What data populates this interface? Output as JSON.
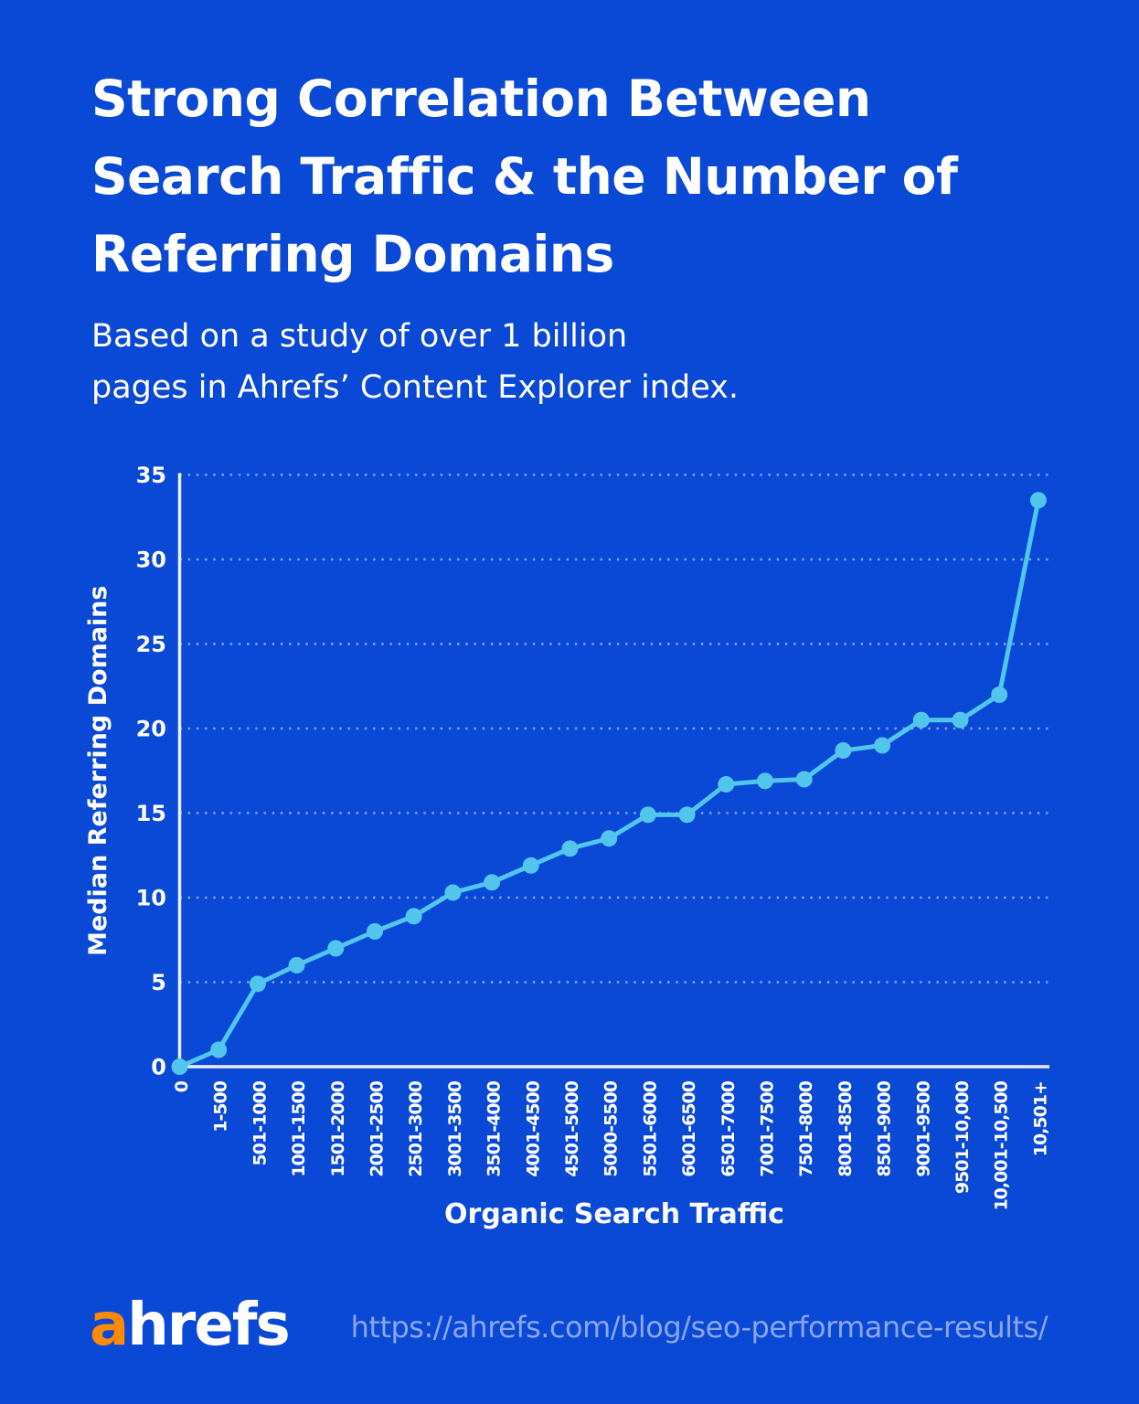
{
  "header": {
    "title_lines": [
      "Strong Correlation Between",
      "Search Traffic & the Number of",
      "Referring Domains"
    ],
    "subtitle_lines": [
      "Based on a study of over 1 billion",
      "pages in Ahrefs’ Content Explorer index."
    ]
  },
  "chart_data": {
    "type": "line",
    "title": "",
    "xlabel": "Organic Search Traffic",
    "ylabel": "Median Referring Domains",
    "categories": [
      "0",
      "1-500",
      "501-1000",
      "1001-1500",
      "1501-2000",
      "2001-2500",
      "2501-3000",
      "3001-3500",
      "3501-4000",
      "4001-4500",
      "4501-5000",
      "5000-5500",
      "5501-6000",
      "6001-6500",
      "6501-7000",
      "7001-7500",
      "7501-8000",
      "8001-8500",
      "8501-9000",
      "9001-9500",
      "9501-10,000",
      "10,001-10,500",
      "10,501+"
    ],
    "values": [
      0,
      1,
      4.9,
      6,
      7,
      8,
      8.9,
      10.3,
      10.9,
      11.9,
      12.9,
      13.5,
      14.9,
      14.9,
      16.7,
      16.9,
      17,
      18.7,
      19,
      20.5,
      20.5,
      22,
      33.5
    ],
    "ylim": [
      0,
      35
    ],
    "yticks": [
      0,
      5,
      10,
      15,
      20,
      25,
      30,
      35
    ],
    "ytick_step": 5,
    "grid": "horizontal-dotted",
    "legend": "none",
    "marker": "circle"
  },
  "footer": {
    "logo_prefix": "a",
    "logo_suffix": "hrefs",
    "url": "https://ahrefs.com/blog/seo-performance-results/"
  },
  "colors": {
    "background": "#0a48d6",
    "text": "#ffffff",
    "line": "#52c5ec",
    "axis": "#e8eef8",
    "gridline": "rgba(255,255,255,0.5)",
    "url_text": "#8aa6e9",
    "logo_orange": "#ff8a05"
  }
}
